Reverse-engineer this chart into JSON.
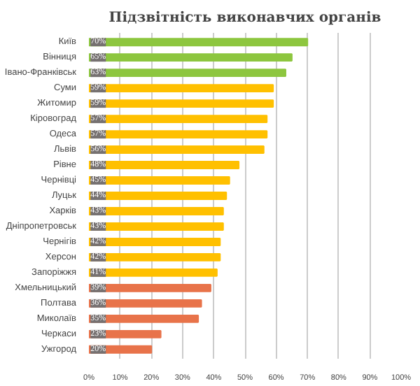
{
  "chart_data": {
    "type": "bar",
    "orientation": "horizontal",
    "title": "Підзвітність виконавчих органів",
    "categories": [
      "Київ",
      "Вінниця",
      "Івано-Франківськ",
      "Суми",
      "Житомир",
      "Кіровоград",
      "Одеса",
      "Львів",
      "Рівне",
      "Чернівці",
      "Луцьк",
      "Харків",
      "Дніпропетровськ",
      "Чернігів",
      "Херсон",
      "Запоріжжя",
      "Хмельницький",
      "Полтава",
      "Миколаїв",
      "Черкаси",
      "Ужгород"
    ],
    "values": [
      70,
      65,
      63,
      59,
      59,
      57,
      57,
      56,
      48,
      45,
      44,
      43,
      43,
      42,
      42,
      41,
      39,
      36,
      35,
      23,
      20
    ],
    "value_labels": [
      "70%",
      "65%",
      "63%",
      "59%",
      "59%",
      "57%",
      "57%",
      "56%",
      "48%",
      "45%",
      "44%",
      "43%",
      "43%",
      "42%",
      "42%",
      "41%",
      "39%",
      "36%",
      "35%",
      "23%",
      "20%"
    ],
    "colors": [
      "#8dc63f",
      "#8dc63f",
      "#8dc63f",
      "#ffc000",
      "#ffc000",
      "#ffc000",
      "#ffc000",
      "#ffc000",
      "#ffc000",
      "#ffc000",
      "#ffc000",
      "#ffc000",
      "#ffc000",
      "#ffc000",
      "#ffc000",
      "#ffc000",
      "#e8734a",
      "#e8734a",
      "#e8734a",
      "#e8734a",
      "#e8734a"
    ],
    "xlim": [
      0,
      100
    ],
    "xticks": [
      {
        "value": 0,
        "label": "0%"
      },
      {
        "value": 10,
        "label": "10%"
      },
      {
        "value": 20,
        "label": "20%"
      },
      {
        "value": 30,
        "label": "30%"
      },
      {
        "value": 40,
        "label": "40%"
      },
      {
        "value": 50,
        "label": "50%"
      },
      {
        "value": 60,
        "label": "60%"
      },
      {
        "value": 70,
        "label": "70%"
      },
      {
        "value": 80,
        "label": "80%"
      },
      {
        "value": 90,
        "label": "90%"
      },
      {
        "value": 100,
        "label": "100%"
      }
    ],
    "grid": "x"
  }
}
